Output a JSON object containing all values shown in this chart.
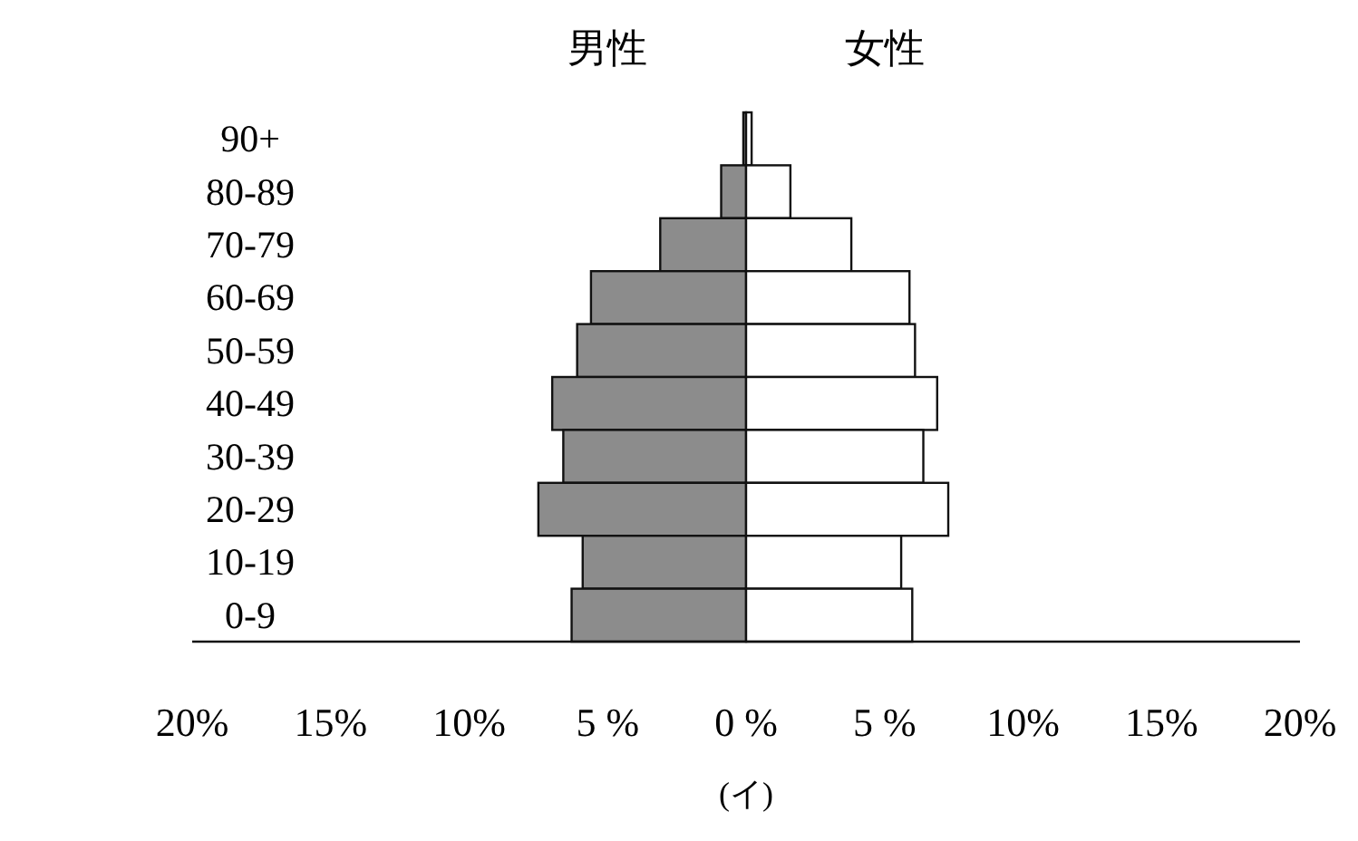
{
  "chart_data": {
    "type": "bar",
    "orientation": "horizontal",
    "stacked": true,
    "categories": [
      "90+",
      "80-89",
      "70-79",
      "60-69",
      "50-59",
      "40-49",
      "30-39",
      "20-29",
      "10-19",
      "0-9"
    ],
    "series": [
      {
        "name": "男性",
        "color": "#8c8c8c",
        "values": [
          -0.1,
          -0.9,
          -3.1,
          -5.6,
          -6.1,
          -7.0,
          -6.6,
          -7.5,
          -5.9,
          -6.3
        ]
      },
      {
        "name": "女性",
        "color": "#ffffff",
        "values": [
          0.2,
          1.6,
          3.8,
          5.9,
          6.1,
          6.9,
          6.4,
          7.3,
          5.6,
          6.0
        ]
      }
    ],
    "xlim": [
      -20,
      20
    ],
    "xticks": [
      {
        "value": -20,
        "label": "20%"
      },
      {
        "value": -15,
        "label": "15%"
      },
      {
        "value": -10,
        "label": "10%"
      },
      {
        "value": -5,
        "label": "5 %"
      },
      {
        "value": 0,
        "label": "0 %"
      },
      {
        "value": 5,
        "label": "5 %"
      },
      {
        "value": 10,
        "label": "10%"
      },
      {
        "value": 15,
        "label": "15%"
      },
      {
        "value": 20,
        "label": "20%"
      }
    ],
    "grid": false,
    "annotations": [
      "(イ)"
    ]
  }
}
